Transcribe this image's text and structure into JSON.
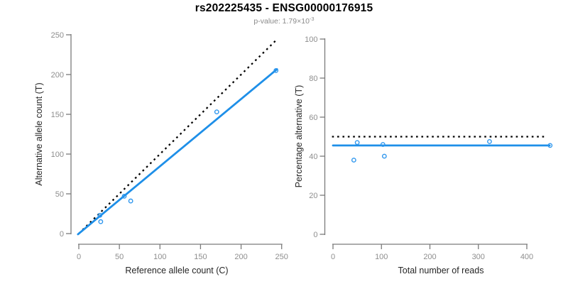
{
  "header": {
    "title": "rs202225435 - ENSG00000176915",
    "subtitle_prefix": "p-value: 1.79×10",
    "subtitle_exponent": "-3"
  },
  "colors": {
    "accent_blue": "#1E8FE8",
    "point_blue": "#2D96EE",
    "dotted_black": "#000000",
    "axis_gray": "#7b7b7b",
    "tick_label_gray": "#8e8e8e",
    "subtitle_gray": "#8a8a8a"
  },
  "chart_data": [
    {
      "type": "scatter",
      "title": "",
      "xlabel": "Reference allele count (C)",
      "ylabel": "Alternative allele count (T)",
      "xlim": [
        0,
        250
      ],
      "ylim": [
        0,
        250
      ],
      "xticks": [
        0,
        50,
        100,
        150,
        200,
        250
      ],
      "yticks": [
        0,
        50,
        100,
        150,
        200,
        250
      ],
      "grid": false,
      "point_color": "#2D96EE",
      "points": [
        [
          27,
          15
        ],
        [
          26,
          23
        ],
        [
          56,
          47
        ],
        [
          64,
          41
        ],
        [
          170,
          153
        ],
        [
          243,
          205
        ]
      ],
      "lines": [
        {
          "name": "identity-line",
          "style": "dotted",
          "color": "#000000",
          "width": 2.3,
          "from": [
            0,
            0
          ],
          "to": [
            243,
            243
          ]
        },
        {
          "name": "regression-line",
          "style": "solid",
          "color": "#1E8FE8",
          "width": 2.8,
          "from": [
            -1,
            -0.85
          ],
          "to": [
            244.3,
            206.7
          ]
        }
      ]
    },
    {
      "type": "scatter",
      "title": "",
      "xlabel": "Total number of reads",
      "ylabel": "Percentage alternative (T)",
      "xlim": [
        0,
        450
      ],
      "ylim": [
        0,
        100
      ],
      "xticks": [
        0,
        100,
        200,
        300,
        400
      ],
      "yticks": [
        0,
        20,
        40,
        60,
        80,
        100
      ],
      "grid": false,
      "point_color": "#2D96EE",
      "points": [
        [
          43,
          38
        ],
        [
          50,
          47
        ],
        [
          103,
          46
        ],
        [
          106,
          40
        ],
        [
          323,
          47.5
        ],
        [
          448,
          45.5
        ]
      ],
      "lines": [
        {
          "name": "expected-50pct-line",
          "style": "dotted",
          "color": "#000000",
          "width": 2.3,
          "from": [
            -2,
            50
          ],
          "to": [
            438,
            50
          ]
        },
        {
          "name": "mean-percentage-line",
          "style": "solid",
          "color": "#1E8FE8",
          "width": 2.8,
          "from": [
            0,
            45.5
          ],
          "to": [
            447,
            45.5
          ]
        }
      ]
    }
  ]
}
